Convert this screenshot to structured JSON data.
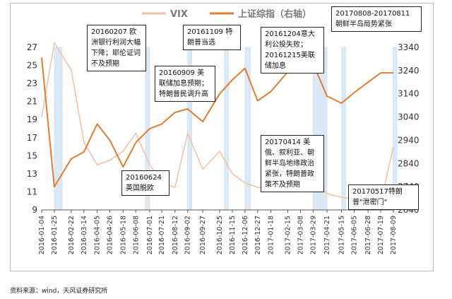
{
  "chart_data": {
    "type": "line",
    "title": "",
    "x": [
      "2016-01-04",
      "2016-01-25",
      "2016-02-22",
      "2016-03-14",
      "2016-04-05",
      "2016-04-26",
      "2016-05-18",
      "2016-06-08",
      "2016-07-01",
      "2016-07-21",
      "2016-08-12",
      "2016-09-02",
      "2016-09-27",
      "2016-10-25",
      "2016-11-15",
      "2016-12-06",
      "2016-12-27",
      "2017-01-18",
      "2017-02-15",
      "2017-03-08",
      "2017-03-29",
      "2017-04-21",
      "2017-05-15",
      "2017-06-05",
      "2017-06-28",
      "2017-07-19",
      "2017-08-09"
    ],
    "series": [
      {
        "name": "VIX",
        "axis": "left",
        "color": "#f2c2a4",
        "values": [
          19.3,
          27.5,
          24.5,
          16.5,
          14.0,
          14.5,
          15.5,
          17.5,
          14.0,
          12.0,
          11.5,
          17.5,
          13.5,
          15.5,
          13.0,
          12.0,
          11.5,
          11.5,
          11.3,
          11.8,
          12.5,
          10.8,
          10.4,
          10.2,
          10.2,
          9.8,
          16.0
        ]
      },
      {
        "name": "上证综指（右轴）",
        "axis": "right",
        "color": "#e37b30",
        "values": [
          3296,
          2740,
          2860,
          2890,
          3010,
          2940,
          2825,
          2930,
          2990,
          3010,
          3060,
          3075,
          3020,
          3140,
          3200,
          3250,
          3110,
          3150,
          3235,
          3240,
          3270,
          3130,
          3100,
          3145,
          3190,
          3230,
          3230
        ]
      }
    ],
    "y_left": {
      "min": 9,
      "max": 27,
      "ticks": [
        9,
        11,
        13,
        15,
        17,
        19,
        21,
        23,
        25,
        27
      ]
    },
    "y_right": {
      "min": 2640,
      "max": 3340,
      "ticks": [
        2640,
        2740,
        2840,
        2940,
        3040,
        3140,
        3240,
        3340
      ]
    },
    "shaded_bands": [
      [
        "2016-01-25",
        "2016-02-07"
      ],
      [
        "2016-06-24",
        "2016-07-01"
      ],
      [
        "2016-09-02",
        "2016-09-09"
      ],
      [
        "2016-11-02",
        "2016-11-09"
      ],
      [
        "2016-12-06",
        "2016-12-15"
      ],
      [
        "2017-03-29",
        "2017-04-21"
      ],
      [
        "2017-05-15",
        "2017-05-17"
      ],
      [
        "2017-08-08",
        "2017-08-09"
      ]
    ],
    "grid": false,
    "legend": "top-center"
  },
  "annotations": [
    {
      "id": "a1",
      "text": "20160207 欧洲银行利润大幅下降；耶伦证词不及预期"
    },
    {
      "id": "a2",
      "text": "20160624 英国脱欧"
    },
    {
      "id": "a3",
      "text": "20160909 美联储加息预期；特朗普民调升高"
    },
    {
      "id": "a4",
      "text": "20161109 特朗普当选"
    },
    {
      "id": "a5",
      "text": "20161204意大利公投失败；20161215美联储加息"
    },
    {
      "id": "a6",
      "text": "20170414 美俄、叙利亚、朝鲜半岛地缘政治紧张，特朗普政策不及预期"
    },
    {
      "id": "a7",
      "text": "20170517特朗普\"泄密门\""
    },
    {
      "id": "a8",
      "text": "20170808-20170811 朝鲜半岛局势紧张"
    }
  ],
  "source": "资料来源：wind，天风证券研究所"
}
